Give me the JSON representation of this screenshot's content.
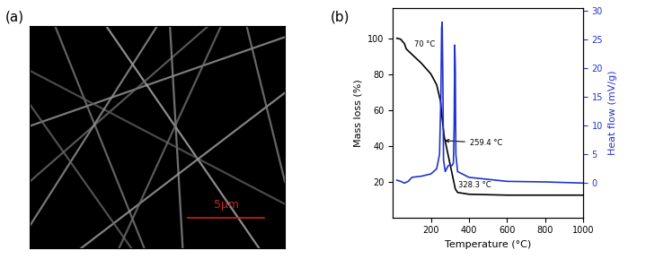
{
  "panel_a": {
    "label": "(a)",
    "scale_bar": "5μm"
  },
  "chart_data": {
    "type": "line",
    "label": "(b)",
    "xlabel": "Temperature (°C)",
    "ylabel": "Mass loss (%)",
    "y2label": "Heat flow (mV/g)",
    "xlim": [
      0,
      1000
    ],
    "xticks": [
      200,
      400,
      600,
      800,
      1000
    ],
    "ylim": [
      0,
      117
    ],
    "yticks": [
      20,
      40,
      60,
      80,
      100
    ],
    "y2lim": [
      -6,
      30.5
    ],
    "y2ticks": [
      0,
      5,
      10,
      15,
      20,
      25,
      30
    ],
    "series": [
      {
        "color": "#000000",
        "x": [
          20,
          40,
          60,
          70,
          100,
          150,
          200,
          230,
          250,
          259,
          270,
          290,
          310,
          320,
          328,
          340,
          400,
          600,
          1000
        ],
        "values": [
          100,
          99.5,
          97,
          94,
          91,
          86,
          80,
          74,
          65,
          55,
          45,
          35,
          25,
          20,
          16,
          14,
          13,
          12.5,
          12.5
        ]
      },
      {
        "color": "#2233cc",
        "axis": "y2",
        "x": [
          20,
          40,
          60,
          80,
          100,
          150,
          200,
          230,
          245,
          252,
          256,
          259,
          262,
          266,
          275,
          290,
          300,
          310,
          318,
          322,
          325,
          328,
          331,
          340,
          400,
          600,
          800,
          1000
        ],
        "values": [
          0.5,
          0.3,
          0,
          0.3,
          1,
          1.2,
          1.6,
          2.5,
          5,
          15,
          27,
          28,
          20,
          4,
          2,
          3,
          3.2,
          3,
          3.5,
          10,
          24,
          20,
          5,
          2,
          1,
          0.3,
          0.2,
          0
        ]
      }
    ],
    "annotations": [
      {
        "text": "70 °C",
        "x": 70,
        "y": 94
      },
      {
        "text": "259.4 °C",
        "x": 259.4,
        "y": 43
      },
      {
        "text": "328.3 °C",
        "x": 328.3,
        "y": 15
      }
    ]
  }
}
